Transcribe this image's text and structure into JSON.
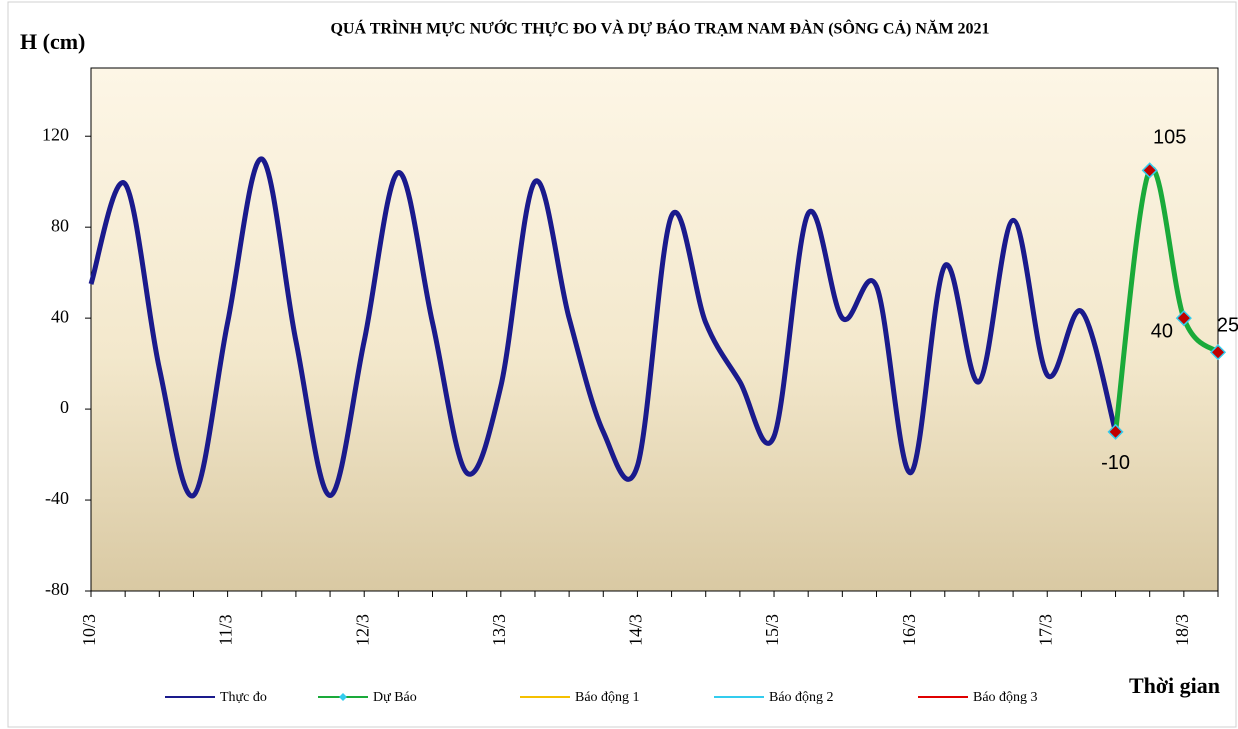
{
  "chart_data": {
    "type": "line",
    "title": "QUÁ TRÌNH MỰC NƯỚC THỰC ĐO VÀ DỰ BÁO TRẠM  NAM ĐÀN (SÔNG CẢ) NĂM 2021",
    "y_label": "H (cm)",
    "x_label": "Thời gian",
    "categories": [
      "10/3",
      null,
      null,
      null,
      "11/3",
      null,
      null,
      null,
      "12/3",
      null,
      null,
      null,
      "13/3",
      null,
      null,
      null,
      "14/3",
      null,
      null,
      null,
      "15/3",
      null,
      null,
      null,
      "16/3",
      null,
      null,
      null,
      "17/3",
      null,
      null,
      null,
      "18/3",
      null
    ],
    "series": [
      {
        "name": "Thực đo",
        "color": "#1a1a8c",
        "smooth": true,
        "values": [
          55,
          99,
          18,
          -38,
          38,
          110,
          30,
          -38,
          30,
          104,
          38,
          -28,
          10,
          100,
          40,
          -10,
          -25,
          85,
          38,
          12,
          -12,
          86,
          40,
          54,
          -28,
          63,
          12,
          83,
          15,
          43,
          -10,
          null,
          null,
          null
        ]
      },
      {
        "name": "Dự Báo",
        "color": "#1aaa3a",
        "marker": "diamond",
        "marker_color": "#c00000",
        "marker_edge": "#33ccee",
        "smooth": true,
        "data_labels": true,
        "values": [
          null,
          null,
          null,
          null,
          null,
          null,
          null,
          null,
          null,
          null,
          null,
          null,
          null,
          null,
          null,
          null,
          null,
          null,
          null,
          null,
          null,
          null,
          null,
          null,
          null,
          null,
          null,
          null,
          null,
          null,
          -10,
          105,
          40,
          25
        ]
      },
      {
        "name": "Báo động 1",
        "color": "#f5c000",
        "values": [
          null,
          null,
          null,
          null,
          null,
          null,
          null,
          null,
          null,
          null,
          null,
          null,
          null,
          null,
          null,
          null,
          null,
          null,
          null,
          null,
          null,
          null,
          null,
          null,
          null,
          null,
          null,
          null,
          null,
          null,
          null,
          null,
          null,
          null
        ]
      },
      {
        "name": "Báo động 2",
        "color": "#33ccee",
        "values": [
          null,
          null,
          null,
          null,
          null,
          null,
          null,
          null,
          null,
          null,
          null,
          null,
          null,
          null,
          null,
          null,
          null,
          null,
          null,
          null,
          null,
          null,
          null,
          null,
          null,
          null,
          null,
          null,
          null,
          null,
          null,
          null,
          null,
          null
        ]
      },
      {
        "name": "Báo động 3",
        "color": "#e00000",
        "values": [
          null,
          null,
          null,
          null,
          null,
          null,
          null,
          null,
          null,
          null,
          null,
          null,
          null,
          null,
          null,
          null,
          null,
          null,
          null,
          null,
          null,
          null,
          null,
          null,
          null,
          null,
          null,
          null,
          null,
          null,
          null,
          null,
          null,
          null
        ]
      }
    ],
    "ylim": [
      -80,
      150
    ],
    "yticks": [
      -80,
      -40,
      0,
      40,
      80,
      120
    ]
  }
}
